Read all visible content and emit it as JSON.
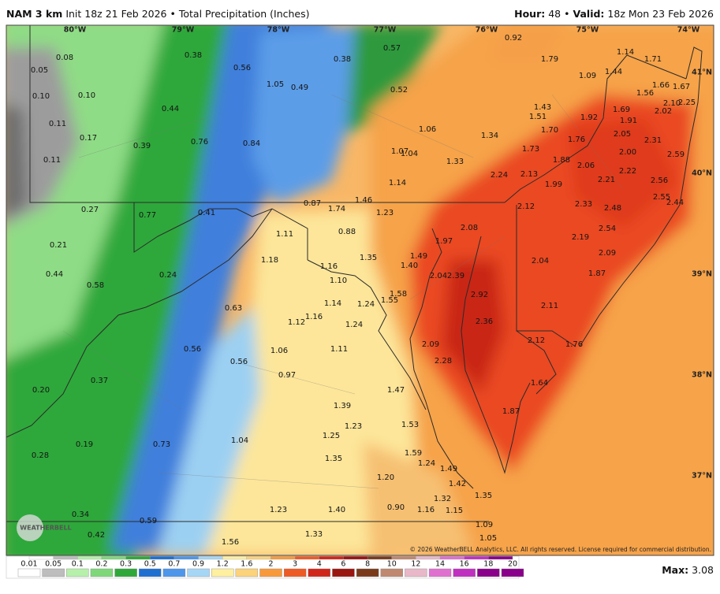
{
  "header": {
    "model": "NAM 3 km",
    "init": "Init 18z 21 Feb 2026",
    "separator": "•",
    "product": "Total Precipitation (Inches)",
    "hour_label": "Hour:",
    "hour": "48",
    "valid_label": "Valid:",
    "valid": "18z Mon 23 Feb 2026"
  },
  "grid_labels": {
    "lon": [
      "80°W",
      "79°W",
      "78°W",
      "77°W",
      "76°W",
      "75°W",
      "74°W"
    ],
    "lat": [
      "41°N",
      "40°N",
      "39°N",
      "38°N",
      "37°N"
    ]
  },
  "map_labels": [
    "0.08",
    "0.05",
    "0.10",
    "0.10",
    "0.11",
    "0.17",
    "0.11",
    "0.38",
    "0.56",
    "0.38",
    "0.57",
    "0.92",
    "1.79",
    "1.14",
    "1.71",
    "1.09",
    "1.44",
    "1.05",
    "0.49",
    "0.52",
    "1.56",
    "1.66",
    "1.67",
    "2.10",
    "2.25",
    "0.44",
    "1.43",
    "1.51",
    "1.69",
    "2.02",
    "1.92",
    "1.91",
    "1.06",
    "1.70",
    "0.76",
    "0.84",
    "0.39",
    "1.34",
    "1.76",
    "2.05",
    "2.31",
    "1.73",
    "1.07",
    "1.04",
    "1.33",
    "1.88",
    "2.06",
    "2.00",
    "2.59",
    "2.24",
    "2.13",
    "2.22",
    "2.56",
    "1.14",
    "1.99",
    "2.21",
    "2.55",
    "2.44",
    "1.46",
    "0.87",
    "1.74",
    "0.27",
    "0.77",
    "0.41",
    "1.23",
    "2.12",
    "2.33",
    "2.48",
    "2.08",
    "0.88",
    "1.11",
    "2.54",
    "1.97",
    "2.19",
    "0.21",
    "1.18",
    "1.35",
    "1.49",
    "1.40",
    "1.16",
    "2.04",
    "2.09",
    "0.44",
    "0.24",
    "1.10",
    "2.04",
    "2.39",
    "1.87",
    "0.58",
    "1.58",
    "1.55",
    "1.14",
    "1.24",
    "2.92",
    "0.63",
    "2.11",
    "1.16",
    "1.12",
    "1.24",
    "2.36",
    "0.56",
    "1.06",
    "1.11",
    "2.09",
    "2.12",
    "1.76",
    "0.56",
    "2.28",
    "0.97",
    "0.37",
    "1.64",
    "1.47",
    "0.20",
    "1.39",
    "1.87",
    "1.23",
    "1.53",
    "1.25",
    "1.04",
    "0.73",
    "0.19",
    "0.28",
    "1.35",
    "1.59",
    "1.24",
    "1.49",
    "1.20",
    "1.42",
    "1.35",
    "1.32",
    "0.90",
    "1.16",
    "1.15",
    "1.23",
    "1.40",
    "0.34",
    "0.59",
    "1.09",
    "1.05",
    "0.42",
    "1.33",
    "1.56"
  ],
  "legend": {
    "labels": [
      "0.01",
      "0.05",
      "0.1",
      "0.2",
      "0.3",
      "0.5",
      "0.7",
      "0.9",
      "1.2",
      "1.6",
      "2",
      "3",
      "4",
      "6",
      "8",
      "10",
      "12",
      "14",
      "16",
      "18",
      "20"
    ]
  },
  "footer": {
    "max_label": "Max:",
    "max_value": "3.08",
    "copyright": "© 2026 WeatherBELL Analytics, LLC. All rights reserved. License required for commercial distribution.",
    "logo": "WEATHERBELL"
  }
}
